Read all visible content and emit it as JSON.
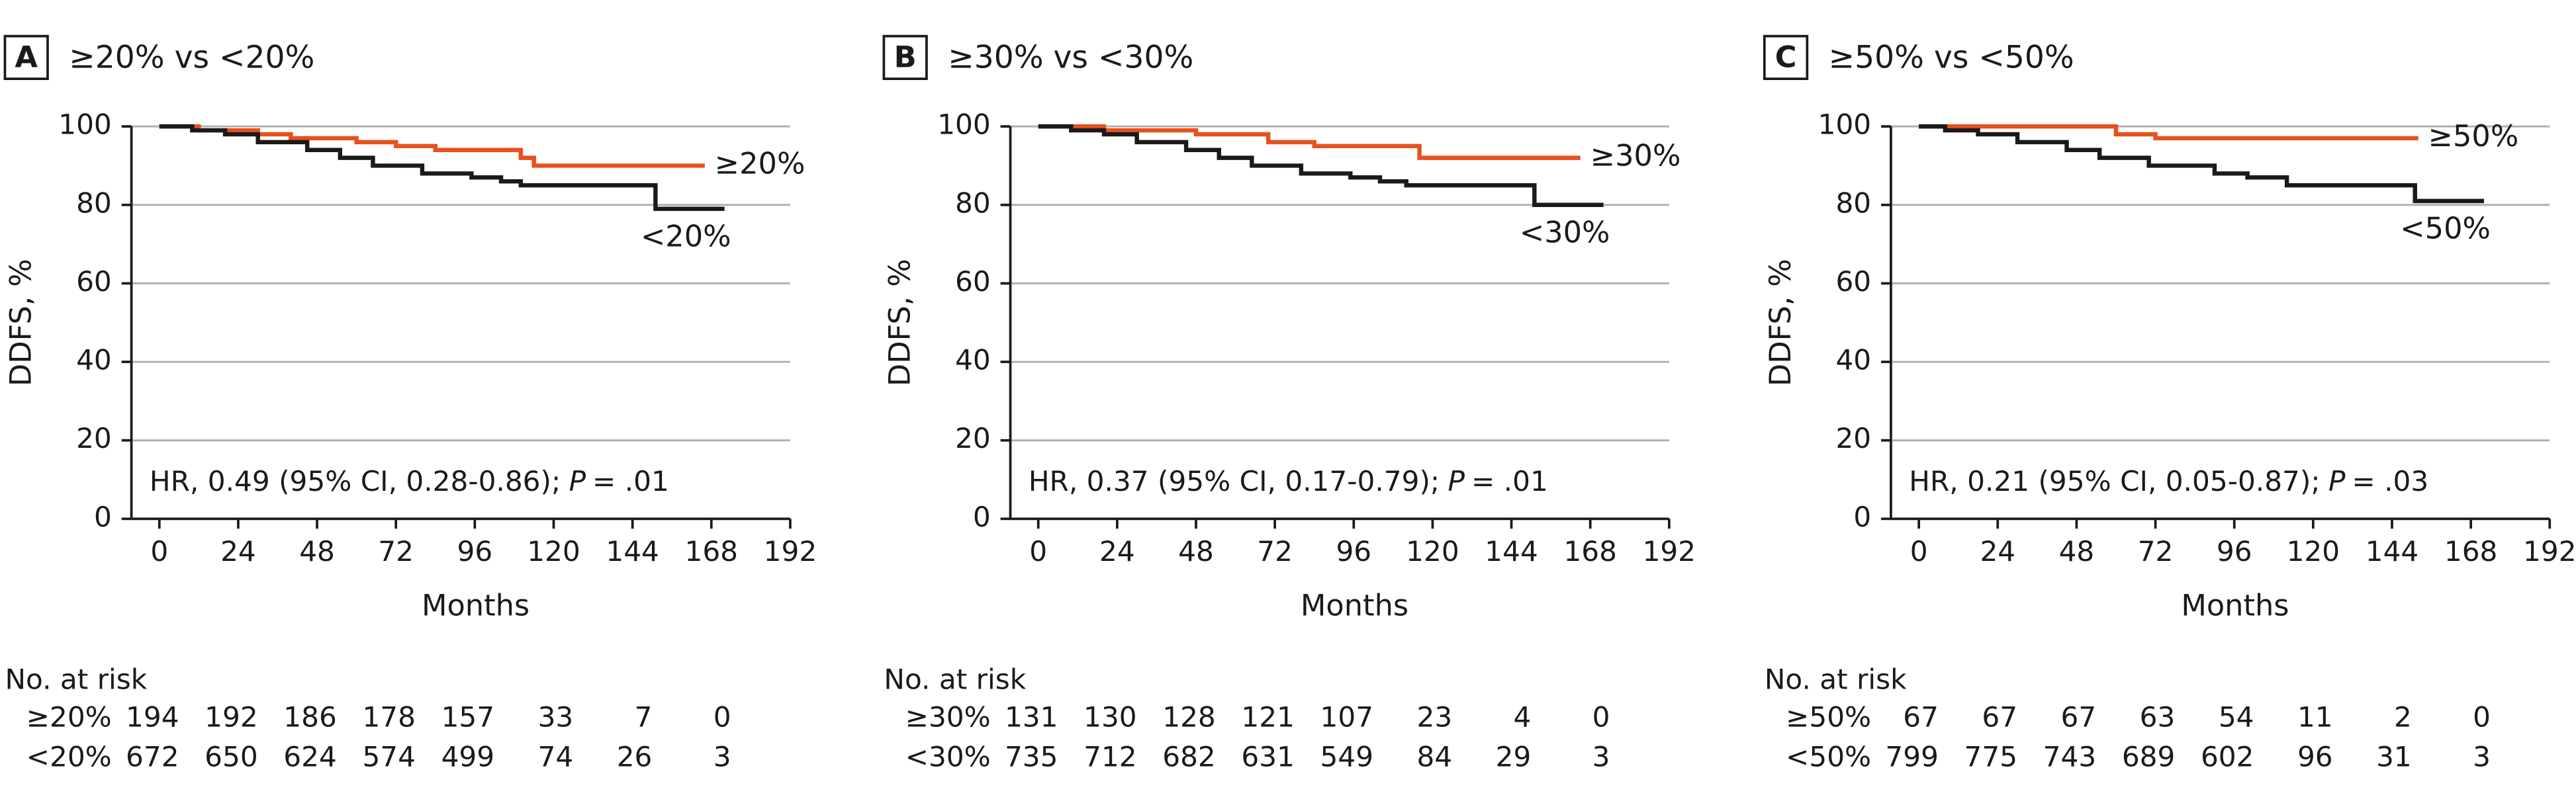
{
  "chart_data": [
    {
      "type": "line",
      "panel_label": "A",
      "title": "≥20% vs <20%",
      "xlabel": "Months",
      "ylabel": "DDFS, %",
      "xlim": [
        -8.5,
        192
      ],
      "ylim": [
        0,
        100
      ],
      "xticks": [
        0,
        24,
        48,
        72,
        96,
        120,
        144,
        168,
        192
      ],
      "yticks": [
        0,
        20,
        40,
        60,
        80,
        100
      ],
      "grid": true,
      "series": [
        {
          "name": "≥20%",
          "color": "#e8501e",
          "x": [
            0,
            12,
            30,
            40,
            60,
            72,
            84,
            110,
            114,
            166
          ],
          "values": [
            100,
            99,
            98,
            97,
            96,
            95,
            94,
            92,
            90,
            90
          ]
        },
        {
          "name": "<20%",
          "color": "#1a1a1a",
          "x": [
            0,
            10,
            20,
            30,
            45,
            55,
            65,
            80,
            95,
            104,
            110,
            151,
            172
          ],
          "values": [
            100,
            99,
            98,
            96,
            94,
            92,
            90,
            88,
            87,
            86,
            85,
            79,
            79
          ]
        }
      ],
      "hr": "HR, 0.49 (95% CI, 0.28-0.86);",
      "p_label": "P",
      "p_value": "= .01",
      "risk_table": {
        "title": "No. at risk",
        "rows": [
          {
            "label": "≥20%",
            "values": [
              194,
              192,
              186,
              178,
              157,
              33,
              7,
              0
            ]
          },
          {
            "label": "<20%",
            "values": [
              672,
              650,
              624,
              574,
              499,
              74,
              26,
              3
            ]
          }
        ]
      }
    },
    {
      "type": "line",
      "panel_label": "B",
      "title": "≥30% vs <30%",
      "xlabel": "Months",
      "ylabel": "DDFS, %",
      "xlim": [
        -8.5,
        192
      ],
      "ylim": [
        0,
        100
      ],
      "xticks": [
        0,
        24,
        48,
        72,
        96,
        120,
        144,
        168,
        192
      ],
      "yticks": [
        0,
        20,
        40,
        60,
        80,
        100
      ],
      "grid": true,
      "series": [
        {
          "name": "≥30%",
          "color": "#e8501e",
          "x": [
            0,
            20,
            48,
            70,
            84,
            116,
            165
          ],
          "values": [
            100,
            99,
            98,
            96,
            95,
            92,
            92
          ]
        },
        {
          "name": "<30%",
          "color": "#1a1a1a",
          "x": [
            0,
            10,
            20,
            30,
            45,
            55,
            65,
            80,
            95,
            104,
            112,
            151,
            172
          ],
          "values": [
            100,
            99,
            98,
            96,
            94,
            92,
            90,
            88,
            87,
            86,
            85,
            80,
            80
          ]
        }
      ],
      "hr": "HR, 0.37 (95% CI, 0.17-0.79);",
      "p_label": "P",
      "p_value": "= .01",
      "risk_table": {
        "title": "No. at risk",
        "rows": [
          {
            "label": "≥30%",
            "values": [
              131,
              130,
              128,
              121,
              107,
              23,
              4,
              0
            ]
          },
          {
            "label": "<30%",
            "values": [
              735,
              712,
              682,
              631,
              549,
              84,
              29,
              3
            ]
          }
        ]
      }
    },
    {
      "type": "line",
      "panel_label": "C",
      "title": "≥50% vs <50%",
      "xlabel": "Months",
      "ylabel": "DDFS, %",
      "xlim": [
        -8.5,
        192
      ],
      "ylim": [
        0,
        100
      ],
      "xticks": [
        0,
        24,
        48,
        72,
        96,
        120,
        144,
        168,
        192
      ],
      "yticks": [
        0,
        20,
        40,
        60,
        80,
        100
      ],
      "grid": true,
      "series": [
        {
          "name": "≥50%",
          "color": "#e8501e",
          "x": [
            0,
            60,
            72,
            152
          ],
          "values": [
            100,
            98,
            97,
            97
          ]
        },
        {
          "name": "<50%",
          "color": "#1a1a1a",
          "x": [
            0,
            8,
            18,
            30,
            45,
            55,
            70,
            90,
            100,
            112,
            151,
            172
          ],
          "values": [
            100,
            99,
            98,
            96,
            94,
            92,
            90,
            88,
            87,
            85,
            81,
            81
          ]
        }
      ],
      "hr": "HR, 0.21 (95% CI, 0.05-0.87);",
      "p_label": "P",
      "p_value": "= .03",
      "risk_table": {
        "title": "No. at risk",
        "rows": [
          {
            "label": "≥50%",
            "values": [
              67,
              67,
              67,
              63,
              54,
              11,
              2,
              0
            ]
          },
          {
            "label": "<50%",
            "values": [
              799,
              775,
              743,
              689,
              602,
              96,
              31,
              3
            ]
          }
        ]
      }
    }
  ]
}
